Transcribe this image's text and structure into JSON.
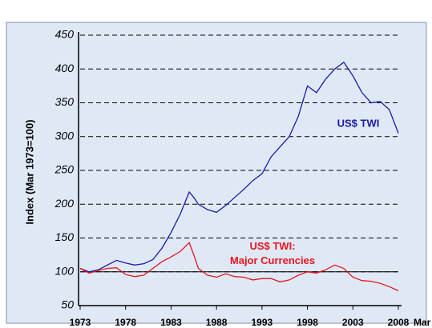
{
  "chart_data": {
    "type": "line",
    "y_axis_label": "Index (Mar 1973=100)",
    "x_end_label": "Mar",
    "xlim": [
      1973,
      2008
    ],
    "xticks": [
      1973,
      1978,
      1983,
      1988,
      1993,
      1998,
      2003,
      2008
    ],
    "ylim": [
      50,
      450
    ],
    "yticks": [
      50,
      100,
      150,
      200,
      250,
      300,
      350,
      400,
      450
    ],
    "grid": true,
    "reference_line": 100,
    "x": [
      1973,
      1974,
      1975,
      1976,
      1977,
      1978,
      1979,
      1980,
      1981,
      1982,
      1983,
      1984,
      1985,
      1985.5,
      1986,
      1987,
      1988,
      1989,
      1990,
      1991,
      1992,
      1993,
      1994,
      1995,
      1996,
      1997,
      1998,
      1999,
      2000,
      2001,
      2002,
      2003,
      2004,
      2005,
      2006,
      2007,
      2008
    ],
    "series": [
      {
        "name": "US$ TWI",
        "color": "#1a1aa6",
        "values": [
          105,
          100,
          103,
          110,
          117,
          113,
          110,
          112,
          118,
          135,
          158,
          185,
          218,
          210,
          200,
          192,
          188,
          198,
          210,
          222,
          235,
          245,
          270,
          285,
          300,
          330,
          375,
          365,
          385,
          400,
          410,
          390,
          365,
          350,
          352,
          340,
          305
        ]
      },
      {
        "name": "US$ TWI: Major Currencies",
        "color": "#e8141c",
        "values": [
          105,
          98,
          102,
          105,
          106,
          96,
          93,
          95,
          105,
          115,
          122,
          130,
          143,
          125,
          105,
          95,
          92,
          97,
          93,
          92,
          88,
          90,
          90,
          85,
          88,
          95,
          100,
          98,
          103,
          110,
          105,
          92,
          87,
          86,
          83,
          78,
          72
        ]
      }
    ]
  }
}
